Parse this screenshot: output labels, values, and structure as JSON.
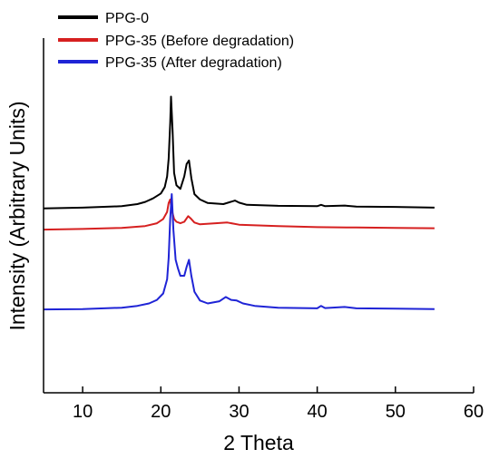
{
  "chart_data": {
    "type": "line",
    "title": "",
    "xlabel": "2 Theta",
    "ylabel": "Intensity (Arbitrary Units)",
    "xlim": [
      5,
      60
    ],
    "ylim": [
      0,
      10
    ],
    "xticks": [
      10,
      20,
      30,
      40,
      50,
      60
    ],
    "yticks": [],
    "grid": false,
    "legend_position": "top-left",
    "series": [
      {
        "name": "PPG-0",
        "color": "#000000",
        "x": [
          5.0,
          10.0,
          15.0,
          17.0,
          18.0,
          19.0,
          20.0,
          20.5,
          20.8,
          21.0,
          21.2,
          21.3,
          21.5,
          21.7,
          22.0,
          22.5,
          23.0,
          23.3,
          23.6,
          23.9,
          24.3,
          25.0,
          26.0,
          28.0,
          29.5,
          30.0,
          31.0,
          35.0,
          40.0,
          40.5,
          41.0,
          43.5,
          45.0,
          50.0,
          55.0
        ],
        "y": [
          5.2,
          5.22,
          5.26,
          5.32,
          5.38,
          5.48,
          5.62,
          5.8,
          6.1,
          6.6,
          7.6,
          8.35,
          7.4,
          6.2,
          5.85,
          5.75,
          6.1,
          6.45,
          6.55,
          6.05,
          5.6,
          5.45,
          5.35,
          5.32,
          5.42,
          5.36,
          5.3,
          5.27,
          5.26,
          5.3,
          5.26,
          5.28,
          5.25,
          5.24,
          5.22
        ]
      },
      {
        "name": "PPG-35 (Before degradation)",
        "color": "#d62020",
        "x": [
          5.0,
          10.0,
          15.0,
          18.0,
          19.5,
          20.3,
          20.8,
          21.0,
          21.2,
          21.4,
          21.7,
          22.0,
          22.5,
          23.0,
          23.5,
          23.8,
          24.3,
          25.0,
          27.0,
          28.5,
          30.0,
          35.0,
          40.0,
          45.0,
          50.0,
          55.0
        ],
        "y": [
          4.6,
          4.62,
          4.65,
          4.7,
          4.78,
          4.9,
          5.1,
          5.35,
          5.45,
          5.15,
          4.9,
          4.82,
          4.78,
          4.82,
          4.98,
          4.92,
          4.8,
          4.75,
          4.78,
          4.8,
          4.74,
          4.7,
          4.67,
          4.66,
          4.65,
          4.64
        ]
      },
      {
        "name": "PPG-35 (After degradation)",
        "color": "#1f24d6",
        "x": [
          5.0,
          10.0,
          15.0,
          17.0,
          18.5,
          19.5,
          20.3,
          20.8,
          21.0,
          21.2,
          21.4,
          21.6,
          21.9,
          22.2,
          22.5,
          23.0,
          23.3,
          23.6,
          23.9,
          24.3,
          25.0,
          26.0,
          27.5,
          28.3,
          29.0,
          29.7,
          30.5,
          32.0,
          35.0,
          40.0,
          40.5,
          41.0,
          43.5,
          45.0,
          50.0,
          55.0
        ],
        "y": [
          2.35,
          2.36,
          2.4,
          2.45,
          2.52,
          2.62,
          2.8,
          3.2,
          3.8,
          4.9,
          5.6,
          4.6,
          3.75,
          3.5,
          3.3,
          3.3,
          3.55,
          3.75,
          3.3,
          2.85,
          2.6,
          2.52,
          2.58,
          2.7,
          2.62,
          2.6,
          2.52,
          2.45,
          2.4,
          2.38,
          2.45,
          2.39,
          2.42,
          2.38,
          2.37,
          2.36
        ]
      }
    ]
  }
}
